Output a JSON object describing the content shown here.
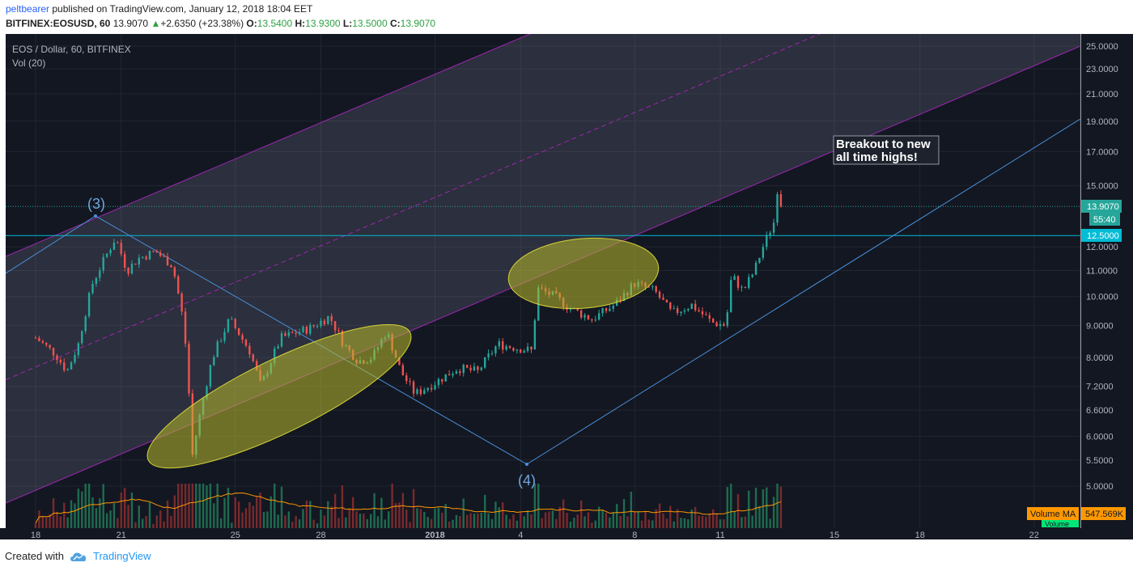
{
  "header": {
    "user": "peltbearer",
    "published": " published on TradingView.com, January 12, 2018 18:04 EET",
    "symbol": "BITFINEX:EOSUSD, 60",
    "last": "13.9070",
    "change_arrow": "▲",
    "change": "+2.6350 (+23.38%)",
    "o_label": "O:",
    "o": "13.5400",
    "h_label": "H:",
    "h": "13.9300",
    "l_label": "L:",
    "l": "13.5000",
    "c_label": "C:",
    "c": "13.9070"
  },
  "legend": {
    "title": "EOS / Dollar, 60, BITFINEX",
    "vol": "Vol (20)"
  },
  "labels": {
    "wave3": "(3)",
    "wave4": "(4)",
    "annotation_line1": "Breakout to new",
    "annotation_line2": "all time highs!",
    "price_tag": "13.9070",
    "countdown": "55:40",
    "level_tag": "12.5000",
    "volume_tag": "Volume MA",
    "volume_value": "547.569K",
    "volume_tag2": "Volume"
  },
  "colors": {
    "background": "#131722",
    "up": "#26a69a",
    "down": "#ef5350",
    "channel": "#9c27b0",
    "trendline": "#4a90d9",
    "level": "#00bcd4",
    "ellipse": "#b9b92c"
  },
  "footer": {
    "created_with": "Created with",
    "brand": "TradingView"
  },
  "chart_data": {
    "type": "candlestick",
    "scale": "log",
    "y_ticks": [
      "25.0000",
      "23.0000",
      "21.0000",
      "19.0000",
      "17.0000",
      "15.0000",
      "12.0000",
      "11.0000",
      "10.0000",
      "9.0000",
      "8.0000",
      "7.2000",
      "6.6000",
      "6.0000",
      "5.5000",
      "5.0000"
    ],
    "x_ticks": [
      "18",
      "21",
      "25",
      "28",
      "2018",
      "4",
      "8",
      "11",
      "15",
      "18",
      "22"
    ],
    "ylim": [
      4.7,
      26.5
    ],
    "horizontal_level": 12.5,
    "last_price": 13.907,
    "path_points": [
      {
        "day": 0,
        "price": 8.6
      },
      {
        "day": 0.7,
        "price": 8.1
      },
      {
        "day": 1.1,
        "price": 7.6
      },
      {
        "day": 1.5,
        "price": 8.4
      },
      {
        "day": 2.0,
        "price": 10.5
      },
      {
        "day": 2.8,
        "price": 12.4
      },
      {
        "day": 3.2,
        "price": 11.0
      },
      {
        "day": 3.6,
        "price": 11.5
      },
      {
        "day": 4.2,
        "price": 11.8
      },
      {
        "day": 4.8,
        "price": 11.2
      },
      {
        "day": 5.2,
        "price": 9.0
      },
      {
        "day": 5.5,
        "price": 5.6
      },
      {
        "day": 6.2,
        "price": 8.0
      },
      {
        "day": 6.8,
        "price": 9.2
      },
      {
        "day": 7.5,
        "price": 8.2
      },
      {
        "day": 7.9,
        "price": 7.2
      },
      {
        "day": 8.6,
        "price": 8.6
      },
      {
        "day": 9.6,
        "price": 8.9
      },
      {
        "day": 10.3,
        "price": 9.3
      },
      {
        "day": 10.8,
        "price": 8.4
      },
      {
        "day": 11.3,
        "price": 7.9
      },
      {
        "day": 11.8,
        "price": 8.0
      },
      {
        "day": 12.3,
        "price": 8.8
      },
      {
        "day": 12.8,
        "price": 7.6
      },
      {
        "day": 13.3,
        "price": 7.0
      },
      {
        "day": 14.0,
        "price": 7.3
      },
      {
        "day": 14.8,
        "price": 7.7
      },
      {
        "day": 15.5,
        "price": 7.6
      },
      {
        "day": 16.2,
        "price": 8.4
      },
      {
        "day": 16.8,
        "price": 8.3
      },
      {
        "day": 17.4,
        "price": 8.2
      },
      {
        "day": 17.6,
        "price": 10.3
      },
      {
        "day": 18.2,
        "price": 10.0
      },
      {
        "day": 18.7,
        "price": 9.6
      },
      {
        "day": 19.5,
        "price": 9.2
      },
      {
        "day": 20.3,
        "price": 9.7
      },
      {
        "day": 21.0,
        "price": 10.5
      },
      {
        "day": 21.7,
        "price": 10.2
      },
      {
        "day": 22.3,
        "price": 9.4
      },
      {
        "day": 23.0,
        "price": 9.7
      },
      {
        "day": 23.7,
        "price": 9.1
      },
      {
        "day": 24.2,
        "price": 9.0
      },
      {
        "day": 24.4,
        "price": 10.8
      },
      {
        "day": 24.8,
        "price": 10.2
      },
      {
        "day": 25.2,
        "price": 11.0
      },
      {
        "day": 25.5,
        "price": 12.0
      },
      {
        "day": 25.9,
        "price": 13.2
      },
      {
        "day": 26.0,
        "price": 14.8
      },
      {
        "day": 26.15,
        "price": 13.9
      }
    ]
  }
}
